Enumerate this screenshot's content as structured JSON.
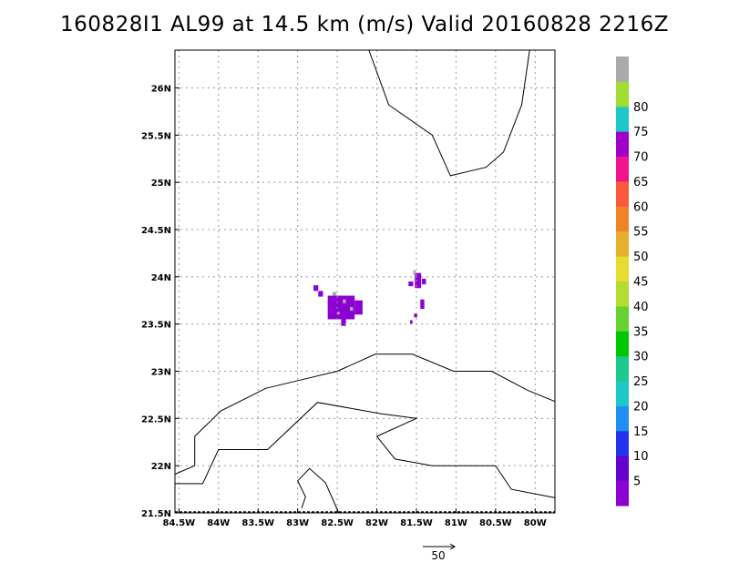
{
  "title": "160828I1 AL99 at 14.5 km (m/s) Valid 20160828 2216Z",
  "map": {
    "lon_range": [
      -84.55,
      -79.75
    ],
    "lat_range": [
      21.5,
      26.4
    ],
    "lon_ticks": [
      {
        "value": -84.5,
        "label": "84.5W"
      },
      {
        "value": -84,
        "label": "84W"
      },
      {
        "value": -83.5,
        "label": "83.5W"
      },
      {
        "value": -83,
        "label": "83W"
      },
      {
        "value": -82.5,
        "label": "82.5W"
      },
      {
        "value": -82,
        "label": "82W"
      },
      {
        "value": -81.5,
        "label": "81.5W"
      },
      {
        "value": -81,
        "label": "81W"
      },
      {
        "value": -80.5,
        "label": "80.5W"
      },
      {
        "value": -80,
        "label": "80W"
      }
    ],
    "lat_ticks": [
      {
        "value": 21.5,
        "label": "21.5N"
      },
      {
        "value": 22,
        "label": "22N"
      },
      {
        "value": 22.5,
        "label": "22.5N"
      },
      {
        "value": 23,
        "label": "23N"
      },
      {
        "value": 23.5,
        "label": "23.5N"
      },
      {
        "value": 24,
        "label": "24N"
      },
      {
        "value": 24.5,
        "label": "24.5N"
      },
      {
        "value": 25,
        "label": "25N"
      },
      {
        "value": 25.5,
        "label": "25.5N"
      },
      {
        "value": 26,
        "label": "26N"
      }
    ],
    "grid": true,
    "coastlines": [
      [
        [
          -82.1,
          26.4
        ],
        [
          -81.85,
          25.82
        ],
        [
          -81.3,
          25.5
        ],
        [
          -81.07,
          25.07
        ],
        [
          -80.62,
          25.16
        ],
        [
          -80.4,
          25.32
        ],
        [
          -80.17,
          25.82
        ],
        [
          -80.07,
          26.4
        ]
      ],
      [
        [
          -84.55,
          21.91
        ],
        [
          -84.3,
          22.0
        ],
        [
          -84.3,
          22.31
        ],
        [
          -83.97,
          22.58
        ],
        [
          -83.4,
          22.82
        ],
        [
          -82.9,
          22.92
        ],
        [
          -82.5,
          23.0
        ],
        [
          -82.02,
          23.18
        ],
        [
          -81.55,
          23.18
        ],
        [
          -81.03,
          23.0
        ],
        [
          -80.55,
          23.0
        ],
        [
          -80.1,
          22.8
        ],
        [
          -79.75,
          22.68
        ]
      ],
      [
        [
          -84.55,
          21.81
        ],
        [
          -84.2,
          21.81
        ],
        [
          -84.0,
          22.17
        ],
        [
          -83.38,
          22.17
        ],
        [
          -82.75,
          22.67
        ],
        [
          -81.95,
          22.55
        ],
        [
          -81.5,
          22.5
        ],
        [
          -82.0,
          22.31
        ],
        [
          -81.77,
          22.07
        ],
        [
          -81.3,
          22.0
        ],
        [
          -80.5,
          22.0
        ],
        [
          -80.3,
          21.75
        ],
        [
          -79.75,
          21.66
        ]
      ],
      [
        [
          -82.48,
          21.5
        ],
        [
          -82.65,
          21.82
        ],
        [
          -82.85,
          21.97
        ],
        [
          -83.0,
          21.84
        ],
        [
          -82.9,
          21.67
        ],
        [
          -82.95,
          21.55
        ]
      ]
    ],
    "velocity_cells": [
      {
        "lon": -82.8,
        "lat": 23.85,
        "w": 0.06,
        "h": 0.06,
        "color": "#8c00d2"
      },
      {
        "lon": -82.74,
        "lat": 23.79,
        "w": 0.06,
        "h": 0.06,
        "color": "#8c00d2"
      },
      {
        "lon": -82.62,
        "lat": 23.55,
        "w": 0.34,
        "h": 0.25,
        "color": "#8c00d2"
      },
      {
        "lon": -82.28,
        "lat": 23.6,
        "w": 0.1,
        "h": 0.15,
        "color": "#8c00d2"
      },
      {
        "lon": -82.45,
        "lat": 23.48,
        "w": 0.06,
        "h": 0.07,
        "color": "#8c00d2"
      },
      {
        "lon": -82.56,
        "lat": 23.8,
        "w": 0.05,
        "h": 0.04,
        "color": "#aaaaaa"
      },
      {
        "lon": -82.43,
        "lat": 23.72,
        "w": 0.04,
        "h": 0.04,
        "color": "#aaaaaa"
      },
      {
        "lon": -82.34,
        "lat": 23.64,
        "w": 0.04,
        "h": 0.04,
        "color": "#aaaaaa"
      },
      {
        "lon": -82.5,
        "lat": 23.6,
        "w": 0.03,
        "h": 0.03,
        "color": "#aaaaaa"
      },
      {
        "lon": -81.6,
        "lat": 23.9,
        "w": 0.06,
        "h": 0.05,
        "color": "#8c00d2"
      },
      {
        "lon": -81.52,
        "lat": 23.88,
        "w": 0.08,
        "h": 0.16,
        "color": "#8c00d2"
      },
      {
        "lon": -81.43,
        "lat": 23.92,
        "w": 0.05,
        "h": 0.06,
        "color": "#8c00d2"
      },
      {
        "lon": -81.54,
        "lat": 24.02,
        "w": 0.03,
        "h": 0.05,
        "color": "#aaaaaa"
      },
      {
        "lon": -81.45,
        "lat": 23.66,
        "w": 0.05,
        "h": 0.1,
        "color": "#8c00d2"
      },
      {
        "lon": -81.53,
        "lat": 23.57,
        "w": 0.04,
        "h": 0.04,
        "color": "#8c00d2"
      },
      {
        "lon": -81.58,
        "lat": 23.5,
        "w": 0.03,
        "h": 0.04,
        "color": "#8c00d2"
      }
    ]
  },
  "colorbar": {
    "colors": [
      "#8c00d2",
      "#6600cc",
      "#2233ee",
      "#1e8ef0",
      "#1ec8c8",
      "#1ec88c",
      "#00c800",
      "#66d232",
      "#b4dc32",
      "#e6dc32",
      "#e6af2d",
      "#f08228",
      "#fa5a3c",
      "#f0148c",
      "#a000c8",
      "#1ec8c8",
      "#a0dc32",
      "#aaaaaa"
    ],
    "labels": [
      "5",
      "10",
      "15",
      "20",
      "25",
      "30",
      "35",
      "40",
      "45",
      "50",
      "55",
      "60",
      "65",
      "70",
      "75",
      "80"
    ]
  },
  "vector_key": {
    "label": "50"
  }
}
